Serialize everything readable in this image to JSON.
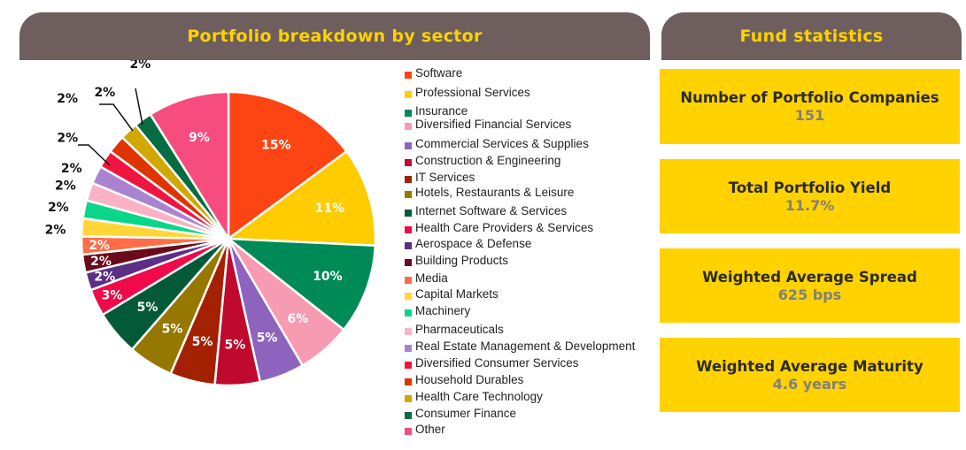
{
  "left_panel": {
    "title": "Portfolio breakdown by sector"
  },
  "right_panel": {
    "title": "Fund statistics",
    "stats": [
      {
        "label": "Number of Portfolio Companies",
        "value": "151"
      },
      {
        "label": "Total Portfolio Yield",
        "value": "11.7%"
      },
      {
        "label": "Weighted Average Spread",
        "value": "625 bps"
      },
      {
        "label": "Weighted Average Maturity",
        "value": "4.6 years"
      }
    ]
  },
  "chart_data": {
    "type": "pie",
    "title": "Portfolio breakdown by sector",
    "legend_position": "right",
    "start": "top, clockwise",
    "slices": [
      {
        "label": "Software",
        "value": 15,
        "display": "15%",
        "color": "#fc4512"
      },
      {
        "label": "Professional Services",
        "value": 11,
        "display": "11%",
        "color": "#ffcc00"
      },
      {
        "label": "Insurance",
        "value": 10,
        "display": "10%",
        "color": "#008a58"
      },
      {
        "label": "Diversified Financial Services",
        "value": 6,
        "display": "6%",
        "color": "#f79bb3"
      },
      {
        "label": "Commercial Services & Supplies",
        "value": 5,
        "display": "5%",
        "color": "#8e63bd"
      },
      {
        "label": "Construction & Engineering",
        "value": 5,
        "display": "5%",
        "color": "#c0092e"
      },
      {
        "label": "IT Services",
        "value": 5,
        "display": "5%",
        "color": "#a32100"
      },
      {
        "label": "Hotels, Restaurants & Leisure",
        "value": 5,
        "display": "5%",
        "color": "#967800"
      },
      {
        "label": "Internet Software & Services",
        "value": 5,
        "display": "5%",
        "color": "#035a38"
      },
      {
        "label": "Health Care Providers & Services",
        "value": 3,
        "display": "3%",
        "color": "#ef0a4a"
      },
      {
        "label": "Aerospace & Defense",
        "value": 2,
        "display": "2%",
        "color": "#5a2f84"
      },
      {
        "label": "Building Products",
        "value": 2,
        "display": "2%",
        "color": "#6b0a1c"
      },
      {
        "label": "Media",
        "value": 2,
        "display": "2%",
        "color": "#fe6d47"
      },
      {
        "label": "Capital Markets",
        "value": 2,
        "display": "2%",
        "color": "#ffd638"
      },
      {
        "label": "Machinery",
        "value": 2,
        "display": "2%",
        "color": "#0ad68a"
      },
      {
        "label": "Pharmaceuticals",
        "value": 2,
        "display": "2%",
        "color": "#fbb2c6"
      },
      {
        "label": "Real Estate Management & Development",
        "value": 2,
        "display": "2%",
        "color": "#a983cf"
      },
      {
        "label": "Diversified Consumer Services",
        "value": 2,
        "display": "2%",
        "color": "#f01540"
      },
      {
        "label": "Household Durables",
        "value": 2,
        "display": "2%",
        "color": "#e03400"
      },
      {
        "label": "Health Care Technology",
        "value": 2,
        "display": "2%",
        "color": "#d1a800"
      },
      {
        "label": "Consumer Finance",
        "value": 2,
        "display": "2%",
        "color": "#056c44"
      },
      {
        "label": "Other",
        "value": 9,
        "display": "9%",
        "color": "#f64c7e"
      }
    ]
  }
}
